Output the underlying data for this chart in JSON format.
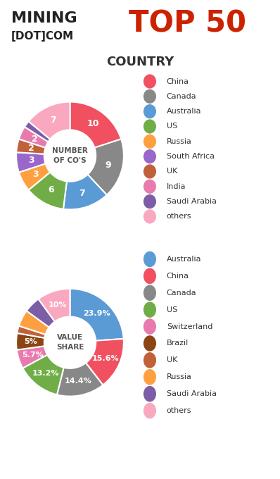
{
  "chart1": {
    "values": [
      10,
      9,
      7,
      6,
      3,
      3,
      2,
      2,
      1,
      7
    ],
    "colors": [
      "#F05060",
      "#888888",
      "#5B9BD5",
      "#70AD47",
      "#FFA040",
      "#9966CC",
      "#C0613A",
      "#E87AAE",
      "#7B5EA7",
      "#F9A8C0"
    ],
    "labels": [
      "10",
      "9",
      "7",
      "6",
      "3",
      "3",
      "2",
      "2",
      "",
      "7"
    ],
    "center_label": "NUMBER\nOF CO'S",
    "legend_labels": [
      "China",
      "Canada",
      "Australia",
      "US",
      "Russia",
      "South Africa",
      "UK",
      "India",
      "Saudi Arabia",
      "others"
    ],
    "legend_colors": [
      "#F05060",
      "#888888",
      "#5B9BD5",
      "#70AD47",
      "#FFA040",
      "#9966CC",
      "#C0613A",
      "#E87AAE",
      "#7B5EA7",
      "#F9A8C0"
    ]
  },
  "chart2": {
    "values": [
      23.9,
      15.6,
      14.4,
      13.2,
      5.7,
      5.0,
      2.2,
      5.0,
      5.0,
      10.0
    ],
    "colors": [
      "#5B9BD5",
      "#F05060",
      "#888888",
      "#70AD47",
      "#E87AAE",
      "#8B4513",
      "#C0613A",
      "#FFA040",
      "#7B5EA7",
      "#F9A8C0"
    ],
    "labels": [
      "23.9%",
      "15.6%",
      "14.4%",
      "13.2%",
      "5.7%",
      "5%",
      "",
      "",
      "",
      "10%"
    ],
    "center_label": "VALUE\nSHARE",
    "legend_labels": [
      "Australia",
      "China",
      "Canada",
      "US",
      "Switzerland",
      "Brazil",
      "UK",
      "Russia",
      "Saudi Arabia",
      "others"
    ],
    "legend_colors": [
      "#5B9BD5",
      "#F05060",
      "#888888",
      "#70AD47",
      "#E87AAE",
      "#8B4513",
      "#C0613A",
      "#FFA040",
      "#7B5EA7",
      "#F9A8C0"
    ]
  }
}
